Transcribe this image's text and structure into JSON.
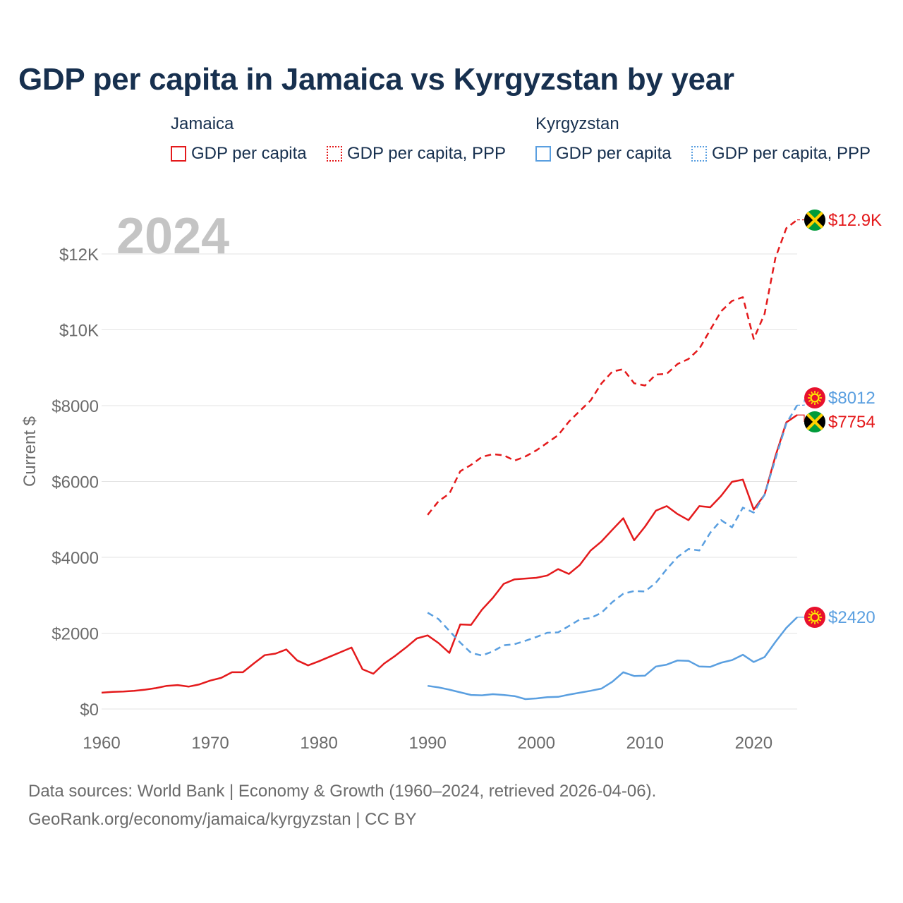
{
  "title": "GDP per capita in Jamaica vs Kyrgyzstan by year",
  "year_watermark": "2024",
  "legend": {
    "groups": [
      {
        "country": "Jamaica",
        "items": [
          "GDP per capita",
          "GDP per capita, PPP"
        ],
        "color": "#e41a1c"
      },
      {
        "country": "Kyrgyzstan",
        "items": [
          "GDP per capita",
          "GDP per capita, PPP"
        ],
        "color": "#5a9fe0"
      }
    ]
  },
  "footer": {
    "line1": "Data sources: World Bank | Economy & Growth (1960–2024, retrieved 2026-04-06).",
    "line2": "GeoRank.org/economy/jamaica/kyrgyzstan | CC BY"
  },
  "chart_data": {
    "type": "line",
    "title": "GDP per capita in Jamaica vs Kyrgyzstan by year",
    "xlabel": "",
    "ylabel": "Current $",
    "xlim": [
      1960,
      2024
    ],
    "ylim": [
      0,
      12900
    ],
    "x_ticks": [
      1960,
      1970,
      1980,
      1990,
      2000,
      2010,
      2020
    ],
    "x_tick_labels": [
      "1960",
      "1970",
      "1980",
      "1990",
      "2000",
      "2010",
      "2020"
    ],
    "y_ticks": [
      0,
      2000,
      4000,
      6000,
      8000,
      10000,
      12000
    ],
    "y_tick_labels": [
      "$0",
      "$2000",
      "$4000",
      "$6000",
      "$8000",
      "$10K",
      "$12K"
    ],
    "grid": true,
    "series": [
      {
        "name": "Jamaica GDP per capita",
        "color": "#e41a1c",
        "style": "solid",
        "end_label": "$7754",
        "flag": "jamaica",
        "start_year": 1960,
        "values": [
          430,
          450,
          460,
          480,
          510,
          550,
          610,
          630,
          590,
          650,
          750,
          820,
          970,
          970,
          1200,
          1420,
          1460,
          1570,
          1280,
          1150,
          1260,
          1380,
          1500,
          1620,
          1050,
          930,
          1200,
          1400,
          1620,
          1860,
          1940,
          1740,
          1480,
          2230,
          2220,
          2620,
          2930,
          3300,
          3420,
          3440,
          3460,
          3520,
          3690,
          3560,
          3800,
          4180,
          4420,
          4730,
          5030,
          4450,
          4810,
          5230,
          5350,
          5140,
          4980,
          5350,
          5320,
          5620,
          5990,
          6050,
          5260,
          5650,
          6670,
          7560,
          7754
        ]
      },
      {
        "name": "Jamaica GDP per capita, PPP",
        "color": "#e41a1c",
        "style": "dashed",
        "end_label": "$12.9K",
        "flag": "jamaica",
        "start_year": 1990,
        "values": [
          5120,
          5480,
          5680,
          6270,
          6440,
          6650,
          6720,
          6690,
          6550,
          6660,
          6820,
          7020,
          7220,
          7580,
          7860,
          8140,
          8590,
          8900,
          8960,
          8590,
          8530,
          8820,
          8840,
          9100,
          9230,
          9500,
          10000,
          10490,
          10760,
          10860,
          9760,
          10420,
          11900,
          12680,
          12900
        ]
      },
      {
        "name": "Kyrgyzstan GDP per capita",
        "color": "#5a9fe0",
        "style": "solid",
        "end_label": "$2420",
        "flag": "kyrgyzstan",
        "start_year": 1990,
        "values": [
          610,
          570,
          510,
          440,
          370,
          360,
          390,
          370,
          340,
          260,
          280,
          310,
          320,
          380,
          430,
          480,
          540,
          720,
          970,
          870,
          880,
          1120,
          1170,
          1280,
          1270,
          1120,
          1110,
          1220,
          1290,
          1430,
          1240,
          1370,
          1770,
          2140,
          2420
        ]
      },
      {
        "name": "Kyrgyzstan GDP per capita, PPP",
        "color": "#5a9fe0",
        "style": "dashed",
        "end_label": "$8012",
        "flag": "kyrgyzstan",
        "start_year": 1990,
        "values": [
          2540,
          2370,
          2060,
          1750,
          1480,
          1410,
          1520,
          1680,
          1710,
          1800,
          1900,
          2010,
          2020,
          2190,
          2360,
          2400,
          2540,
          2820,
          3040,
          3110,
          3100,
          3330,
          3690,
          4010,
          4220,
          4180,
          4650,
          4980,
          4790,
          5310,
          5180,
          5650,
          6600,
          7530,
          8012
        ]
      }
    ]
  }
}
